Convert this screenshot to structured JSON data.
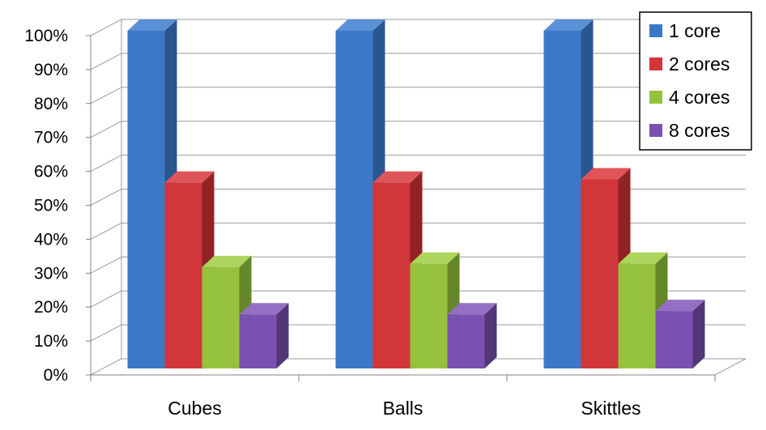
{
  "chart_data": {
    "type": "bar",
    "title": "",
    "xlabel": "",
    "ylabel": "",
    "categories": [
      "Cubes",
      "Balls",
      "Skittles"
    ],
    "series": [
      {
        "name": "1 core",
        "values": [
          100,
          100,
          100
        ],
        "color": "#3c78c8",
        "top": "#5a91d6",
        "side": "#2a568f"
      },
      {
        "name": "2 cores",
        "values": [
          55,
          55,
          56
        ],
        "color": "#d0363a",
        "top": "#e05558",
        "side": "#8f2326"
      },
      {
        "name": "4 cores",
        "values": [
          30,
          31,
          31
        ],
        "color": "#95c23d",
        "top": "#add45c",
        "side": "#66862a"
      },
      {
        "name": "8 cores",
        "values": [
          16,
          16,
          17
        ],
        "color": "#7a50b0",
        "top": "#9470c4",
        "side": "#52367a"
      }
    ],
    "ylim": [
      0,
      100
    ],
    "yticks": [
      "0%",
      "10%",
      "20%",
      "30%",
      "40%",
      "50%",
      "60%",
      "70%",
      "80%",
      "90%",
      "100%"
    ],
    "grid": true,
    "legend_position": "top-right",
    "projection": "3d"
  }
}
